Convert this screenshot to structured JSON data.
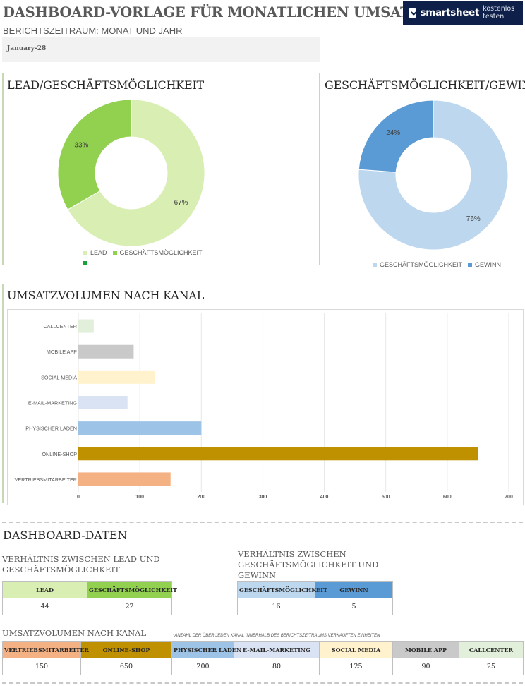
{
  "header": {
    "title": "DASHBOARD-VORLAGE FÜR MONATLICHEN UMSATZBERICHT",
    "logo_name": "smartsheet",
    "logo_cta": "kostenlos testen",
    "period_label": "BERICHTSZEITRAUM: MONAT UND JAHR",
    "period_value": "January-28"
  },
  "colors": {
    "lead": "#d9eeb3",
    "opportunity": "#92d050",
    "opportunity_light": "#bdd7ee",
    "profit": "#5b9bd5",
    "sales_rep": "#f4b183",
    "online_shop": "#bf9000",
    "store": "#9dc3e6",
    "email": "#dae3f3",
    "social": "#fff2cc",
    "mobile": "#c9c9c9",
    "callcenter": "#e2efda"
  },
  "chart_data": [
    {
      "type": "pie",
      "title": "LEAD/GESCHÄFTSMÖGLICHKEIT",
      "categories": [
        "LEAD",
        "GESCHÄFTSMÖGLICHKEIT"
      ],
      "values": [
        44,
        22
      ],
      "labels": [
        "67%",
        "33%"
      ],
      "donut": true,
      "legend": "bottom"
    },
    {
      "type": "pie",
      "title": "GESCHÄFTSMÖGLICHKEIT/GEWINN",
      "categories": [
        "GESCHÄFTSMÖGLICHKEIT",
        "GEWINN"
      ],
      "values": [
        16,
        5
      ],
      "labels": [
        "76%",
        "24%"
      ],
      "donut": true,
      "legend": "bottom"
    },
    {
      "type": "bar",
      "orientation": "horizontal",
      "title": "UMSATZVOLUMEN NACH KANAL",
      "categories": [
        "VERTRIEBSMITARBEITER",
        "ONLINE-SHOP",
        "PHYSISCHER LADEN",
        "E-MAIL-MARKETING",
        "SOCIAL MEDIA",
        "MOBILE APP",
        "CALLCENTER"
      ],
      "values": [
        150,
        650,
        200,
        80,
        125,
        90,
        25
      ],
      "xlim": [
        0,
        700
      ],
      "xticks": [
        0,
        100,
        200,
        300,
        400,
        500,
        600,
        700
      ],
      "grid": true
    }
  ],
  "data_section": {
    "title": "DASHBOARD-DATEN",
    "lead_ratio": {
      "title": "VERHÄLTNIS ZWISCHEN LEAD UND GESCHÄFTSMÖGLICHKEIT",
      "headers": [
        "LEAD",
        "GESCHÄFTSMÖGLICHKEIT"
      ],
      "values": [
        "44",
        "22"
      ]
    },
    "opp_ratio": {
      "title": "VERHÄLTNIS ZWISCHEN GESCHÄFTSMÖGLICHKEIT UND GEWINN",
      "headers": [
        "GESCHÄFTSMÖGLICHKEIT",
        "GEWINN"
      ],
      "values": [
        "16",
        "5"
      ]
    },
    "channels": {
      "title": "UMSATZVOLUMEN NACH KANAL",
      "note": "*ANZAHL DER ÜBER JEDEN KANAL INNERHALB DES BERICHTSZEITRAUMS VERKAUFTEN EINHEITEN",
      "headers": [
        "VERTRIEBSMITARBEITER",
        "ONLINE-SHOP",
        "PHYSISCHER LADEN",
        "E-MAIL-MARKETING",
        "SOCIAL MEDIA",
        "MOBILE APP",
        "CALLCENTER"
      ],
      "values": [
        "150",
        "650",
        "200",
        "80",
        "125",
        "90",
        "25"
      ]
    }
  }
}
